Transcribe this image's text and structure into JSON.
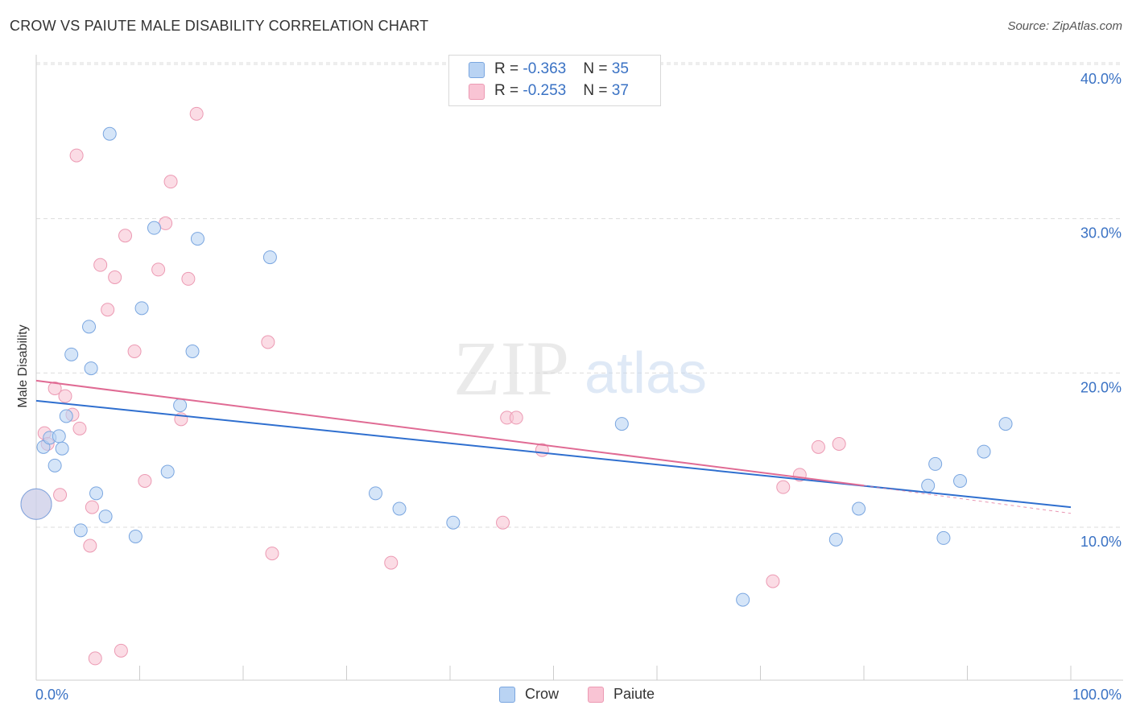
{
  "title": "CROW VS PAIUTE MALE DISABILITY CORRELATION CHART",
  "source": "Source: ZipAtlas.com",
  "watermark": {
    "zip": "ZIP",
    "atlas": "atlas"
  },
  "legend_top": [
    {
      "r_label": "R = ",
      "r_value": "-0.363",
      "n_label": "N = ",
      "n_value": "35"
    },
    {
      "r_label": "R = ",
      "r_value": "-0.253",
      "n_label": "N = ",
      "n_value": "37"
    }
  ],
  "colors": {
    "crow_fill": "#b9d3f3",
    "crow_stroke": "#7aa6e0",
    "crow_line": "#2f6fcf",
    "paiute_fill": "#f9c4d4",
    "paiute_stroke": "#ec9ab3",
    "paiute_line": "#e06b94",
    "grid": "#dddddd",
    "axis_text": "#3a72c4"
  },
  "chart_data": {
    "type": "scatter",
    "title": "CROW VS PAIUTE MALE DISABILITY CORRELATION CHART",
    "xlabel": "",
    "ylabel": "Male Disability",
    "xlim": [
      0,
      100
    ],
    "ylim": [
      0,
      40
    ],
    "x_tick_labels": [
      "0.0%",
      "100.0%"
    ],
    "y_ticks": [
      10,
      20,
      30,
      40
    ],
    "y_tick_labels": [
      "10.0%",
      "20.0%",
      "30.0%",
      "40.0%"
    ],
    "grid": true,
    "legend_position": "bottom-center",
    "series": [
      {
        "name": "Crow",
        "r": -0.363,
        "n": 35,
        "trend": {
          "x": [
            0,
            100
          ],
          "y": [
            18.2,
            11.3
          ]
        },
        "points": [
          {
            "x": 0,
            "y": 11.5,
            "big": true
          },
          {
            "x": 0.7,
            "y": 15.2
          },
          {
            "x": 1.3,
            "y": 15.8
          },
          {
            "x": 1.8,
            "y": 14.0
          },
          {
            "x": 2.2,
            "y": 15.9
          },
          {
            "x": 2.5,
            "y": 15.1
          },
          {
            "x": 2.9,
            "y": 17.2
          },
          {
            "x": 3.4,
            "y": 21.2
          },
          {
            "x": 4.3,
            "y": 9.8
          },
          {
            "x": 5.1,
            "y": 23.0
          },
          {
            "x": 5.3,
            "y": 20.3
          },
          {
            "x": 5.8,
            "y": 12.2
          },
          {
            "x": 6.7,
            "y": 10.7
          },
          {
            "x": 7.1,
            "y": 35.5
          },
          {
            "x": 9.6,
            "y": 9.4
          },
          {
            "x": 10.2,
            "y": 24.2
          },
          {
            "x": 11.4,
            "y": 29.4
          },
          {
            "x": 12.7,
            "y": 13.6
          },
          {
            "x": 13.9,
            "y": 17.9
          },
          {
            "x": 15.1,
            "y": 21.4
          },
          {
            "x": 15.6,
            "y": 28.7
          },
          {
            "x": 22.6,
            "y": 27.5
          },
          {
            "x": 32.8,
            "y": 12.2
          },
          {
            "x": 35.1,
            "y": 11.2
          },
          {
            "x": 40.3,
            "y": 10.3
          },
          {
            "x": 56.6,
            "y": 16.7
          },
          {
            "x": 68.3,
            "y": 5.3
          },
          {
            "x": 77.3,
            "y": 9.2
          },
          {
            "x": 79.5,
            "y": 11.2
          },
          {
            "x": 86.2,
            "y": 12.7
          },
          {
            "x": 86.9,
            "y": 14.1
          },
          {
            "x": 87.7,
            "y": 9.3
          },
          {
            "x": 89.3,
            "y": 13.0
          },
          {
            "x": 91.6,
            "y": 14.9
          },
          {
            "x": 93.7,
            "y": 16.7
          }
        ]
      },
      {
        "name": "Paiute",
        "r": -0.253,
        "n": 37,
        "trend": {
          "x": [
            0,
            80
          ],
          "y": [
            19.5,
            12.7
          ]
        },
        "trend_dashed": {
          "x": [
            80,
            100
          ],
          "y": [
            12.7,
            10.9
          ]
        },
        "points": [
          {
            "x": 0,
            "y": 11.5,
            "big": true
          },
          {
            "x": 0.8,
            "y": 16.1
          },
          {
            "x": 1.1,
            "y": 15.4
          },
          {
            "x": 1.8,
            "y": 19.0
          },
          {
            "x": 2.3,
            "y": 12.1
          },
          {
            "x": 2.8,
            "y": 18.5
          },
          {
            "x": 3.5,
            "y": 17.3
          },
          {
            "x": 3.9,
            "y": 34.1
          },
          {
            "x": 4.2,
            "y": 16.4
          },
          {
            "x": 5.2,
            "y": 8.8
          },
          {
            "x": 5.4,
            "y": 11.3
          },
          {
            "x": 5.7,
            "y": 1.5
          },
          {
            "x": 6.2,
            "y": 27.0
          },
          {
            "x": 6.9,
            "y": 24.1
          },
          {
            "x": 7.6,
            "y": 26.2
          },
          {
            "x": 8.2,
            "y": 2.0
          },
          {
            "x": 8.6,
            "y": 28.9
          },
          {
            "x": 9.5,
            "y": 21.4
          },
          {
            "x": 10.5,
            "y": 13.0
          },
          {
            "x": 11.8,
            "y": 26.7
          },
          {
            "x": 12.5,
            "y": 29.7
          },
          {
            "x": 13.0,
            "y": 32.4
          },
          {
            "x": 14.0,
            "y": 17.0
          },
          {
            "x": 14.7,
            "y": 26.1
          },
          {
            "x": 15.5,
            "y": 36.8
          },
          {
            "x": 22.4,
            "y": 22.0
          },
          {
            "x": 22.8,
            "y": 8.3
          },
          {
            "x": 34.3,
            "y": 7.7
          },
          {
            "x": 45.1,
            "y": 10.3
          },
          {
            "x": 45.5,
            "y": 17.1
          },
          {
            "x": 46.4,
            "y": 17.1
          },
          {
            "x": 48.9,
            "y": 15.0
          },
          {
            "x": 71.2,
            "y": 6.5
          },
          {
            "x": 72.2,
            "y": 12.6
          },
          {
            "x": 73.8,
            "y": 13.4
          },
          {
            "x": 75.6,
            "y": 15.2
          },
          {
            "x": 77.6,
            "y": 15.4
          }
        ]
      }
    ]
  }
}
